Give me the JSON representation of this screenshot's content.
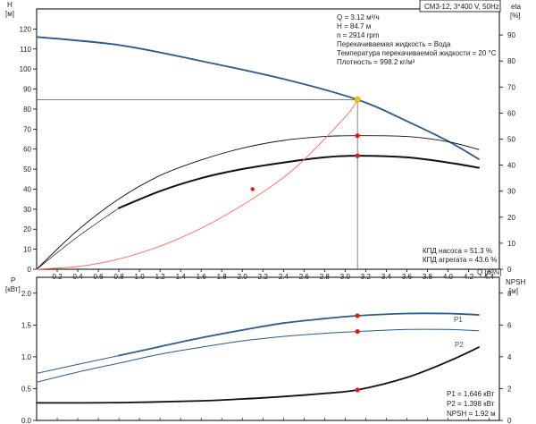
{
  "header": {
    "pump_label": "CM3-12, 3*400 V, 50Hz"
  },
  "top_chart": {
    "axes": {
      "left_title": "H",
      "left_unit": "[м]",
      "right_title": "eta",
      "right_unit": "[%]",
      "x_label": "Q [м³/ч]"
    },
    "info": [
      "Q = 3.12 м³/ч",
      "H = 84.7 м",
      "n = 2914 rpm",
      "Перекачиваемая жидкость = Вода",
      "Температура перекачиваемой жидкости = 20 °C",
      "Плотность = 998.2 кг/м³"
    ],
    "efficiency_notes": [
      "КПД насоса = 51.3 %",
      "КПД агрегата = 43.6 %"
    ]
  },
  "bottom_chart": {
    "axes": {
      "left_title": "P",
      "left_unit": "[кВт]",
      "right_title": "NPSH",
      "right_unit": "[м]"
    },
    "info": [
      "P1 = 1.646 кВт",
      "P2 = 1.398 кВт",
      "NPSH = 1.92 м"
    ]
  },
  "colors": {
    "head_curve": "#2b5c8a",
    "efficiency_curve": "#111111",
    "system_curve": "#ff6f61",
    "operating_point": "#f5c400",
    "marker": "#ee1111",
    "power_curve": "#2b5c8a",
    "npsh_curve": "#111111",
    "grid": "#000000"
  },
  "chart_data": [
    {
      "type": "line",
      "x_ticks": [
        "0.2",
        "0.4",
        "0.6",
        "0.8",
        "1.0",
        "1.2",
        "1.4",
        "1.6",
        "1.8",
        "2.0",
        "2.2",
        "2.4",
        "2.6",
        "2.8",
        "3.0",
        "3.2",
        "3.4",
        "3.6",
        "3.8",
        "4.0",
        "4.2",
        "4.4"
      ],
      "left_ticks": [
        "0",
        "10",
        "20",
        "30",
        "40",
        "50",
        "60",
        "70",
        "80",
        "90",
        "100",
        "110",
        "120"
      ],
      "right_ticks": [
        "0",
        "10",
        "20",
        "30",
        "40",
        "50",
        "60",
        "70",
        "80",
        "90"
      ],
      "xlim": [
        0,
        4.5
      ],
      "ylim_left": [
        0,
        130
      ],
      "ylim_right": [
        0,
        100
      ],
      "grid": false,
      "series": [
        {
          "axis": "left",
          "color": "#2b5c8a",
          "width": 1.8,
          "x": [
            0,
            0.8,
            1.6,
            2.4,
            3.12,
            3.6,
            4.0,
            4.3
          ],
          "y": [
            116,
            112,
            104,
            95,
            84.7,
            74,
            64,
            55
          ]
        },
        {
          "axis": "left",
          "color": "#2b5c8a",
          "width": 1,
          "x": [
            0,
            0.8
          ],
          "y": [
            116,
            112
          ]
        },
        {
          "axis": "right",
          "color": "#111111",
          "width": 0.9,
          "x": [
            0,
            0.4,
            0.8,
            1.2,
            1.6,
            2.0,
            2.4,
            2.8,
            3.12,
            3.6,
            4.0,
            4.3
          ],
          "y": [
            0,
            15,
            27,
            36,
            42,
            46.5,
            49.5,
            51,
            51.3,
            51,
            49,
            46
          ]
        },
        {
          "axis": "right",
          "color": "#111111",
          "width": 2,
          "x": [
            0.8,
            1.2,
            1.6,
            2.0,
            2.4,
            2.8,
            3.12,
            3.6,
            4.0,
            4.3
          ],
          "y": [
            23.5,
            30,
            35,
            38.5,
            41,
            43,
            43.6,
            43,
            41,
            39
          ]
        },
        {
          "axis": "right",
          "color": "#111111",
          "width": 0.7,
          "x": [
            0,
            0.4,
            0.8
          ],
          "y": [
            0,
            12.5,
            23.5
          ]
        },
        {
          "axis": "left",
          "color": "#ff6f61",
          "width": 0.9,
          "x": [
            0,
            0.5,
            1.0,
            1.5,
            2.0,
            2.5,
            3.0,
            3.12
          ],
          "y": [
            0,
            2,
            8,
            18,
            32,
            50,
            76,
            84.7
          ]
        }
      ],
      "markers": [
        {
          "axis": "left",
          "x": 3.12,
          "y": 84.7,
          "color": "#f5c400",
          "r": 3.2
        },
        {
          "axis": "right",
          "x": 3.12,
          "y": 51.3,
          "color": "#ee1111",
          "r": 2.6
        },
        {
          "axis": "right",
          "x": 3.12,
          "y": 43.6,
          "color": "#ee1111",
          "r": 2.6
        },
        {
          "axis": "left",
          "x": 2.1,
          "y": 40,
          "color": "#ee1111",
          "r": 2.2
        }
      ],
      "operating_point": {
        "x": 3.12,
        "y": 84.7
      }
    },
    {
      "type": "line",
      "left_ticks": [
        "0.0",
        "0.5",
        "1.0",
        "1.5",
        "2.0"
      ],
      "right_ticks": [
        "0",
        "2",
        "4",
        "6",
        "8"
      ],
      "xlim": [
        0,
        4.5
      ],
      "ylim_left": [
        0,
        2.25
      ],
      "ylim_right": [
        0,
        9
      ],
      "grid": false,
      "series": [
        {
          "name": "P1",
          "axis": "left",
          "color": "#2b5c8a",
          "width": 1.8,
          "x": [
            0.8,
            1.2,
            1.6,
            2.0,
            2.4,
            2.8,
            3.12,
            3.6,
            4.0,
            4.3
          ],
          "y": [
            1.02,
            1.16,
            1.3,
            1.42,
            1.53,
            1.6,
            1.646,
            1.68,
            1.68,
            1.66
          ]
        },
        {
          "name": "",
          "axis": "left",
          "color": "#2b5c8a",
          "width": 1,
          "x": [
            0,
            0.4,
            0.8
          ],
          "y": [
            0.74,
            0.88,
            1.02
          ]
        },
        {
          "name": "P2",
          "axis": "left",
          "color": "#2b5c8a",
          "width": 1,
          "x": [
            0,
            0.4,
            0.8,
            1.2,
            1.6,
            2.0,
            2.4,
            2.8,
            3.12,
            3.6,
            4.0,
            4.3
          ],
          "y": [
            0.6,
            0.76,
            0.9,
            1.04,
            1.15,
            1.25,
            1.32,
            1.37,
            1.398,
            1.43,
            1.43,
            1.41
          ]
        },
        {
          "name": "",
          "axis": "right",
          "color": "#111111",
          "width": 1.8,
          "x": [
            0,
            0.8,
            1.6,
            2.0,
            2.4,
            2.8,
            3.12,
            3.6,
            4.0,
            4.3
          ],
          "y": [
            1.1,
            1.12,
            1.23,
            1.35,
            1.5,
            1.7,
            1.92,
            2.7,
            3.7,
            4.6
          ]
        }
      ],
      "markers": [
        {
          "axis": "left",
          "x": 3.12,
          "y": 1.646,
          "color": "#ee1111",
          "r": 2.6
        },
        {
          "axis": "left",
          "x": 3.12,
          "y": 1.398,
          "color": "#ee1111",
          "r": 2.6
        },
        {
          "axis": "right",
          "x": 3.12,
          "y": 1.92,
          "color": "#ee1111",
          "r": 2.6
        }
      ],
      "curve_labels": [
        "P1",
        "P2"
      ]
    }
  ]
}
